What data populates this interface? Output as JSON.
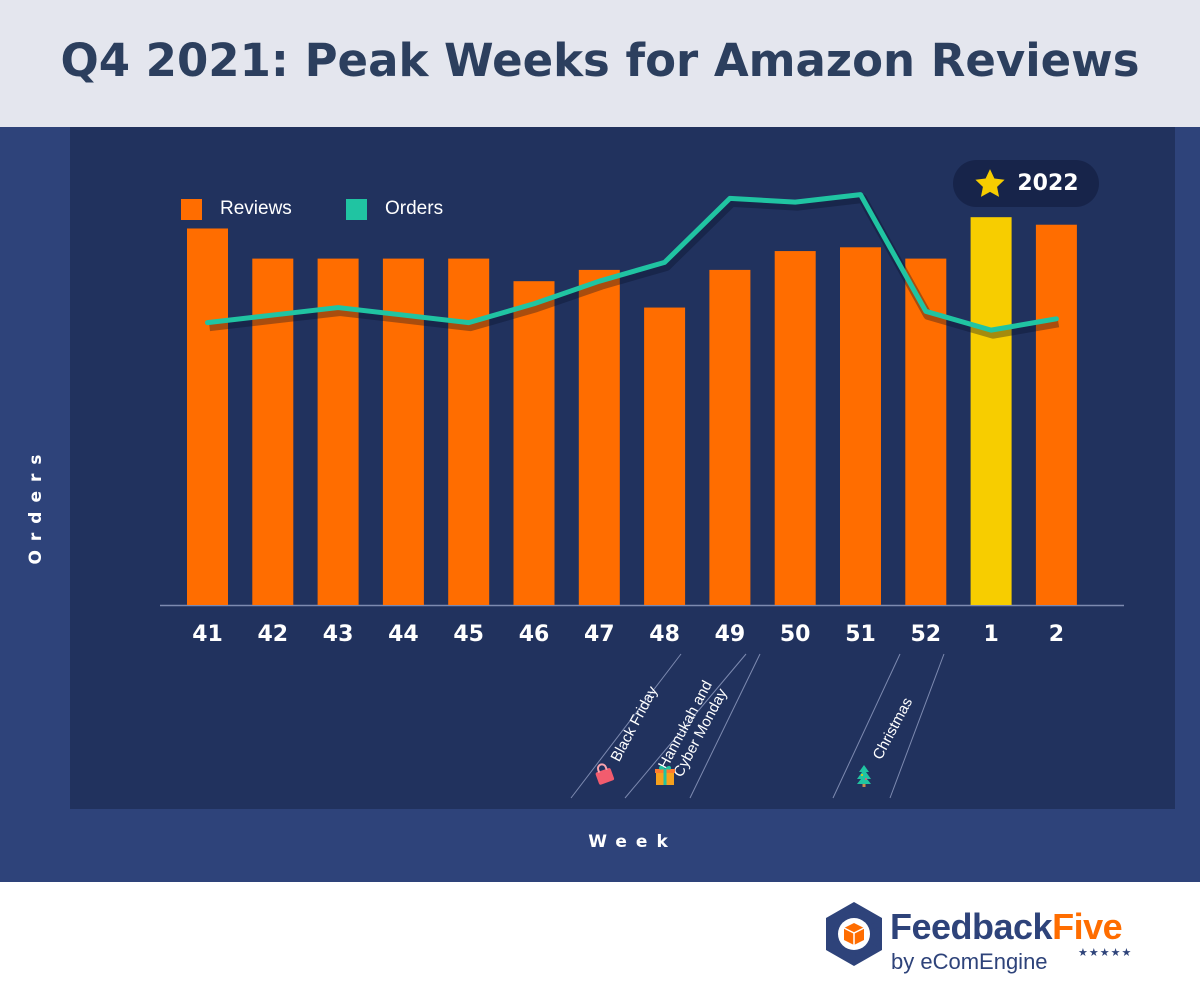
{
  "title": "Q4 2021: Peak Weeks for Amazon Reviews",
  "colors": {
    "bar": "#ff6d00",
    "highlight": "#f7cd00",
    "line": "#20c4a2",
    "background": "#21325e",
    "frame": "#2e437a",
    "header": "#e4e6ee",
    "title": "#2c3f5e"
  },
  "badge": {
    "label": "2022",
    "icon": "star-icon"
  },
  "legend": [
    {
      "label": "Reviews",
      "color": "#ff6d00"
    },
    {
      "label": "Orders",
      "color": "#20c4a2"
    }
  ],
  "events": [
    {
      "lines": [
        "Black Friday"
      ],
      "week": "48",
      "icon": "shopping-bag-icon"
    },
    {
      "lines": [
        "Hannukah and",
        "Cyber Monday"
      ],
      "week": "49",
      "icon": "gift-icon"
    },
    {
      "lines": [
        "Christmas"
      ],
      "week": "52",
      "icon": "christmas-tree-icon"
    }
  ],
  "brand": {
    "name_a": "Feedback",
    "name_b": "Five",
    "sub": "by eComEngine",
    "stars": "★★★★★"
  },
  "chart_data": {
    "type": "bar",
    "title": "Q4 2021: Peak Weeks for Amazon Reviews",
    "xlabel": "Week",
    "ylabel": "Orders",
    "categories": [
      "41",
      "42",
      "43",
      "44",
      "45",
      "46",
      "47",
      "48",
      "49",
      "50",
      "51",
      "52",
      "1",
      "2"
    ],
    "series": [
      {
        "name": "Reviews",
        "type": "bar",
        "values": [
          100,
          92,
          92,
          92,
          92,
          86,
          89,
          79,
          89,
          94,
          95,
          92,
          103,
          101
        ]
      },
      {
        "name": "Orders",
        "type": "line",
        "values": [
          75,
          77,
          79,
          77,
          75,
          80,
          86,
          91,
          108,
          107,
          109,
          78,
          73,
          76
        ]
      }
    ],
    "highlight_categories": [
      "1"
    ],
    "ylim": [
      0,
      115
    ],
    "grid": false
  }
}
